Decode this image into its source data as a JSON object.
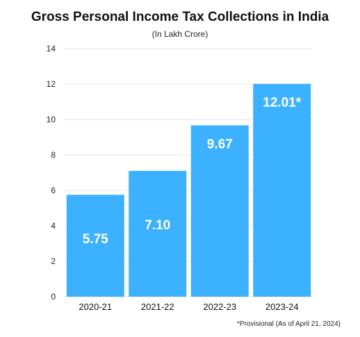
{
  "chart_data": {
    "type": "bar",
    "title": "Gross Personal Income Tax Collections in India",
    "subtitle": "(In Lakh Crore)",
    "categories": [
      "2020-21",
      "2021-22",
      "2022-23",
      "2023-24"
    ],
    "values": [
      5.75,
      7.1,
      9.67,
      12.01
    ],
    "value_labels": [
      "5.75",
      "7.10",
      "9.67",
      "12.01*"
    ],
    "ylim": [
      0,
      14
    ],
    "yticks": [
      0,
      2,
      4,
      6,
      8,
      10,
      12,
      14
    ],
    "grid": true,
    "xlabel": "",
    "ylabel": "",
    "bar_color": "#3bb1ff",
    "footnote": "*Provisional (As of April 21, 2024)"
  }
}
